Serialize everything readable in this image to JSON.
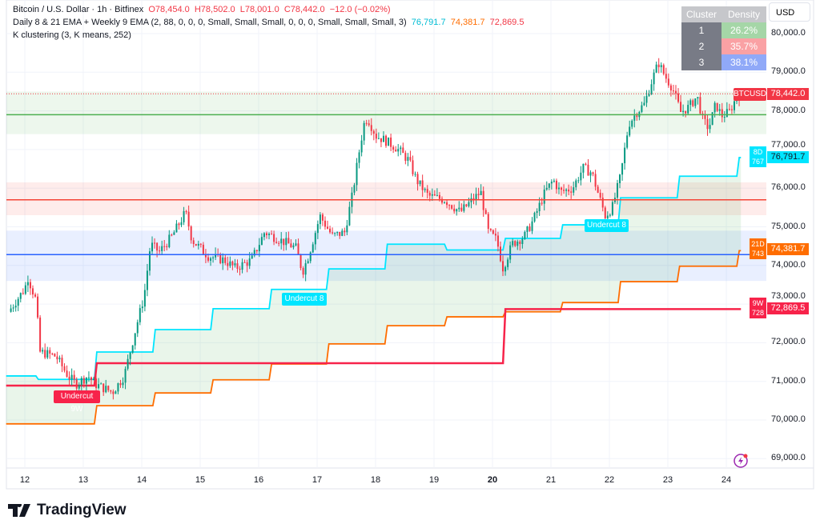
{
  "header": {
    "symbol": "Bitcoin / U.S. Dollar · 1h · Bitfinex",
    "open": "O78,454.0",
    "high": "H78,502.0",
    "low": "L78,001.0",
    "close": "C78,442.0",
    "change": "−12.0 (−0.02%)",
    "indicator1": "Daily 8 & 21 EMA + Weekly 9 EMA (2, 88, 0, 0, 0, Small, Small, Small, 0, 0, 0, Small, Small, Small, 3)",
    "ind1_v1": "76,791.7",
    "ind1_v2": "74,381.7",
    "ind1_v3": "72,869.5",
    "indicator2": "K clustering (3, K means, 252)"
  },
  "cluster_table": {
    "headers": [
      "Cluster",
      "Density"
    ],
    "rows": [
      {
        "n": "1",
        "d": "26.2%",
        "color": "#a5d6a7"
      },
      {
        "n": "2",
        "d": "35.7%",
        "color": "#faa1a4"
      },
      {
        "n": "3",
        "d": "38.1%",
        "color": "#90a9f8"
      }
    ]
  },
  "currency": "USD",
  "price_axis": [
    "80,000.0",
    "79,000.0",
    "78,000.0",
    "77,000.0",
    "76,000.0",
    "75,000.0",
    "74,000.0",
    "73,000.0",
    "72,000.0",
    "71,000.0",
    "70,000.0",
    "69,000.0"
  ],
  "time_axis": [
    "12",
    "13",
    "14",
    "15",
    "16",
    "17",
    "18",
    "19",
    "20",
    "21",
    "22",
    "23",
    "24"
  ],
  "tags": {
    "symbol": "BTCUSD",
    "last": "78,442.0",
    "ema8": "76,791.7",
    "ema8_flag": "8D 767",
    "ema21": "74,381.7",
    "ema21_flag": "21D 743",
    "ema9w": "72,869.5",
    "ema9w_flag": "9W 728"
  },
  "labels": {
    "undercut_9w": "Undercut 9W",
    "undercut_8a": "Undercut 8",
    "undercut_8b": "Undercut 8"
  },
  "brand": "TradingView",
  "colors": {
    "up": "#089981",
    "down": "#f23645",
    "ema8": "#00e5ff",
    "ema21": "#ff6d00",
    "ema9w": "#f7234a",
    "cluster1": "#4caf50",
    "cluster2": "#f44336",
    "cluster3": "#2962ff"
  },
  "chart_data": {
    "type": "candlestick",
    "x_unit": "day of month",
    "ylim": [
      68700,
      80800
    ],
    "price_path": [
      [
        11.72,
        72800
      ],
      [
        12.0,
        73400
      ],
      [
        12.05,
        73700
      ],
      [
        12.19,
        73100
      ],
      [
        12.26,
        71760
      ],
      [
        12.53,
        71650
      ],
      [
        12.74,
        71140
      ],
      [
        12.88,
        70930
      ],
      [
        13.08,
        71140
      ],
      [
        13.2,
        70930
      ],
      [
        13.5,
        70720
      ],
      [
        13.7,
        71140
      ],
      [
        13.9,
        72380
      ],
      [
        14.04,
        73200
      ],
      [
        14.15,
        74550
      ],
      [
        14.3,
        74350
      ],
      [
        14.52,
        74760
      ],
      [
        14.75,
        75380
      ],
      [
        14.86,
        74660
      ],
      [
        15.14,
        74240
      ],
      [
        15.41,
        74140
      ],
      [
        15.6,
        73930
      ],
      [
        15.88,
        74140
      ],
      [
        16.1,
        74860
      ],
      [
        16.37,
        74660
      ],
      [
        16.64,
        74450
      ],
      [
        16.75,
        73830
      ],
      [
        16.85,
        74240
      ],
      [
        17.05,
        75280
      ],
      [
        17.26,
        74760
      ],
      [
        17.47,
        74860
      ],
      [
        17.6,
        75800
      ],
      [
        17.74,
        77140
      ],
      [
        17.82,
        77800
      ],
      [
        17.88,
        77760
      ],
      [
        18.01,
        77350
      ],
      [
        18.15,
        77250
      ],
      [
        18.36,
        77040
      ],
      [
        18.56,
        76730
      ],
      [
        18.7,
        76210
      ],
      [
        18.9,
        75800
      ],
      [
        19.18,
        75700
      ],
      [
        19.45,
        75380
      ],
      [
        19.66,
        75700
      ],
      [
        19.8,
        75900
      ],
      [
        19.93,
        74860
      ],
      [
        20.07,
        74660
      ],
      [
        20.18,
        73930
      ],
      [
        20.34,
        74560
      ],
      [
        20.55,
        74760
      ],
      [
        20.7,
        75180
      ],
      [
        20.9,
        75900
      ],
      [
        21.04,
        76210
      ],
      [
        21.16,
        75900
      ],
      [
        21.37,
        76000
      ],
      [
        21.55,
        76520
      ],
      [
        21.7,
        76400
      ],
      [
        21.8,
        75900
      ],
      [
        21.93,
        75280
      ],
      [
        22.05,
        75500
      ],
      [
        22.19,
        76310
      ],
      [
        22.33,
        77660
      ],
      [
        22.47,
        77970
      ],
      [
        22.6,
        78180
      ],
      [
        22.73,
        78800
      ],
      [
        22.84,
        79250
      ],
      [
        22.95,
        78900
      ],
      [
        23.08,
        78590
      ],
      [
        23.22,
        77970
      ],
      [
        23.36,
        78100
      ],
      [
        23.5,
        78380
      ],
      [
        23.6,
        77760
      ],
      [
        23.7,
        77550
      ],
      [
        23.82,
        78180
      ],
      [
        23.92,
        77870
      ],
      [
        24.05,
        77970
      ],
      [
        24.15,
        78280
      ],
      [
        24.25,
        78442
      ]
    ],
    "ema8_daily": [
      [
        11.68,
        71140
      ],
      [
        12.19,
        71050
      ],
      [
        13.19,
        71760
      ],
      [
        14.19,
        72340
      ],
      [
        15.18,
        72880
      ],
      [
        16.18,
        73380
      ],
      [
        17.16,
        73910
      ],
      [
        18.16,
        74550
      ],
      [
        19.18,
        74400
      ],
      [
        20.18,
        74700
      ],
      [
        21.16,
        75050
      ],
      [
        22.15,
        75750
      ],
      [
        23.16,
        76310
      ],
      [
        24.18,
        76791.7
      ]
    ],
    "ema21_daily": [
      [
        11.68,
        69900
      ],
      [
        13.19,
        70370
      ],
      [
        14.19,
        70700
      ],
      [
        15.18,
        71040
      ],
      [
        16.18,
        71450
      ],
      [
        17.16,
        71970
      ],
      [
        18.16,
        72440
      ],
      [
        19.18,
        72670
      ],
      [
        20.18,
        72800
      ],
      [
        21.16,
        73040
      ],
      [
        22.15,
        73580
      ],
      [
        23.16,
        73980
      ],
      [
        24.18,
        74381.7
      ]
    ],
    "ema9_weekly": [
      [
        11.68,
        70890
      ],
      [
        13.19,
        71470
      ],
      [
        20.18,
        72869.5
      ]
    ],
    "clusters": [
      {
        "level": 77900,
        "low": 77400,
        "high": 78500
      },
      {
        "level": 75700,
        "low": 75300,
        "high": 76150
      },
      {
        "level": 74280,
        "low": 73600,
        "high": 74900
      }
    ],
    "last_price": 78442
  }
}
